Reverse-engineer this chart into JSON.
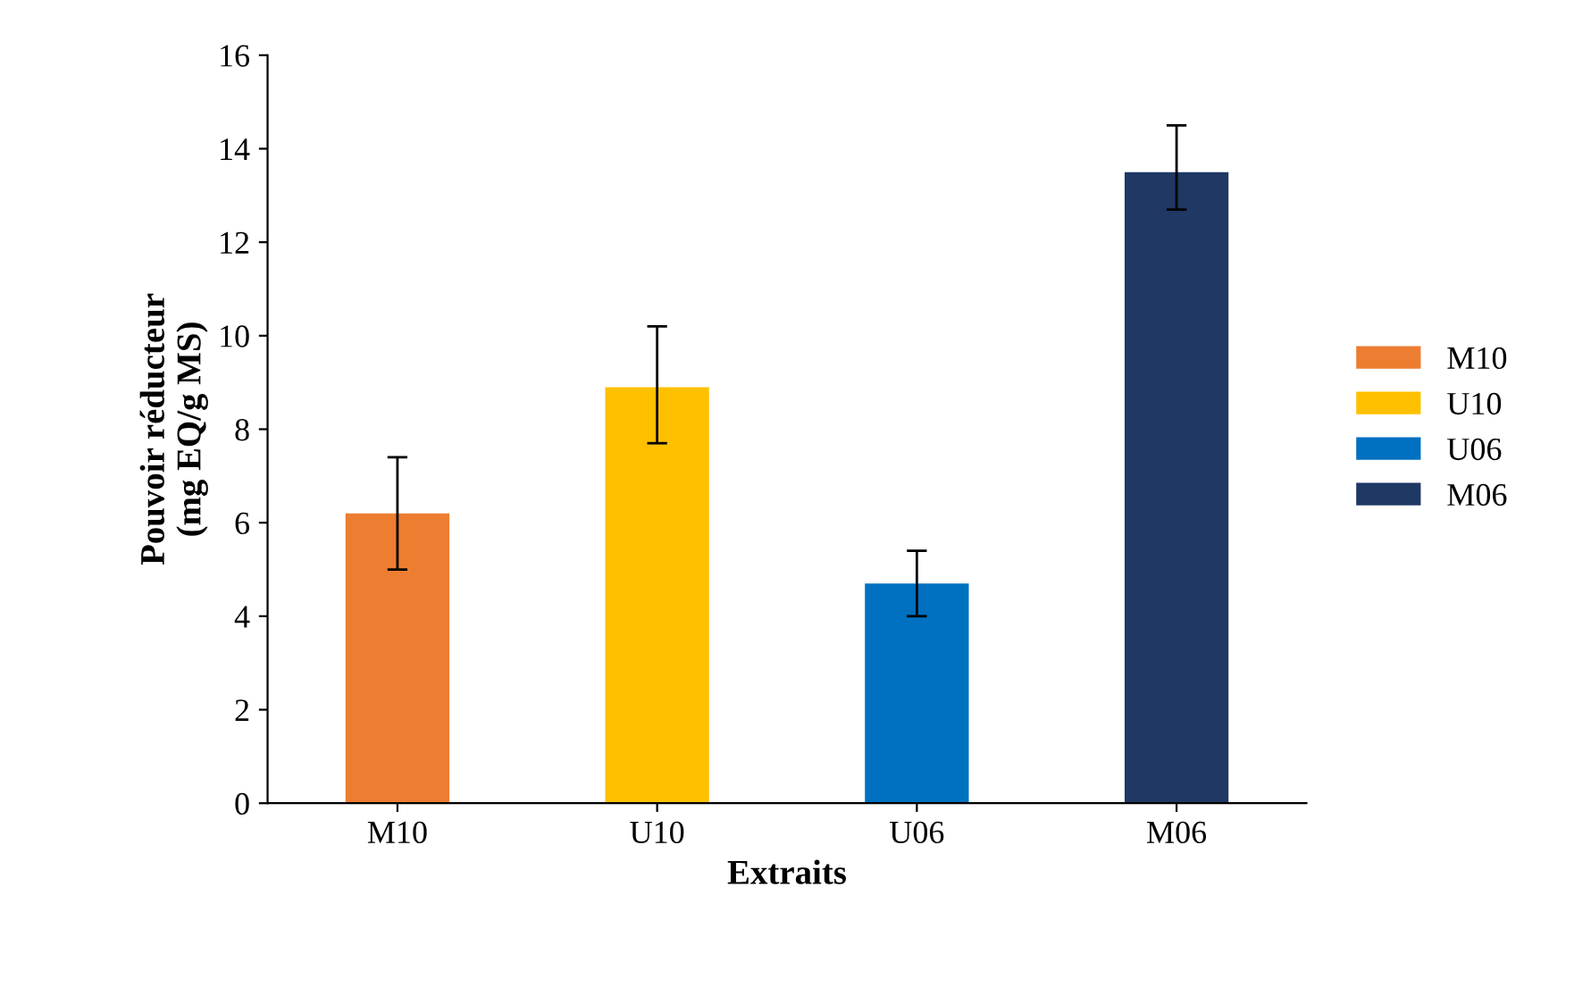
{
  "chart_data": {
    "type": "bar",
    "xlabel": "Extraits",
    "ylabel": "Pouvoir réducteur\n(mg EQ/g MS)",
    "categories": [
      "M10",
      "U10",
      "U06",
      "M06"
    ],
    "series": [
      {
        "name": "M10",
        "color": "#ed7d31",
        "values": [
          6.2,
          null,
          null,
          null
        ],
        "errors": [
          [
            5.0,
            7.4
          ],
          null,
          null,
          null
        ]
      },
      {
        "name": "U10",
        "color": "#ffc000",
        "values": [
          null,
          8.9,
          null,
          null
        ],
        "errors": [
          null,
          [
            7.7,
            10.2
          ],
          null,
          null
        ]
      },
      {
        "name": "U06",
        "color": "#0070c0",
        "values": [
          null,
          null,
          4.7,
          null
        ],
        "errors": [
          null,
          null,
          [
            4.0,
            5.4
          ],
          null
        ]
      },
      {
        "name": "M06",
        "color": "#1f3864",
        "values": [
          null,
          null,
          null,
          13.5
        ],
        "errors": [
          null,
          null,
          null,
          [
            12.7,
            14.5
          ]
        ]
      }
    ],
    "ylim": [
      0,
      16
    ],
    "yticks": [
      0,
      2,
      4,
      6,
      8,
      10,
      12,
      14,
      16
    ],
    "grid": false,
    "legend": "right"
  }
}
